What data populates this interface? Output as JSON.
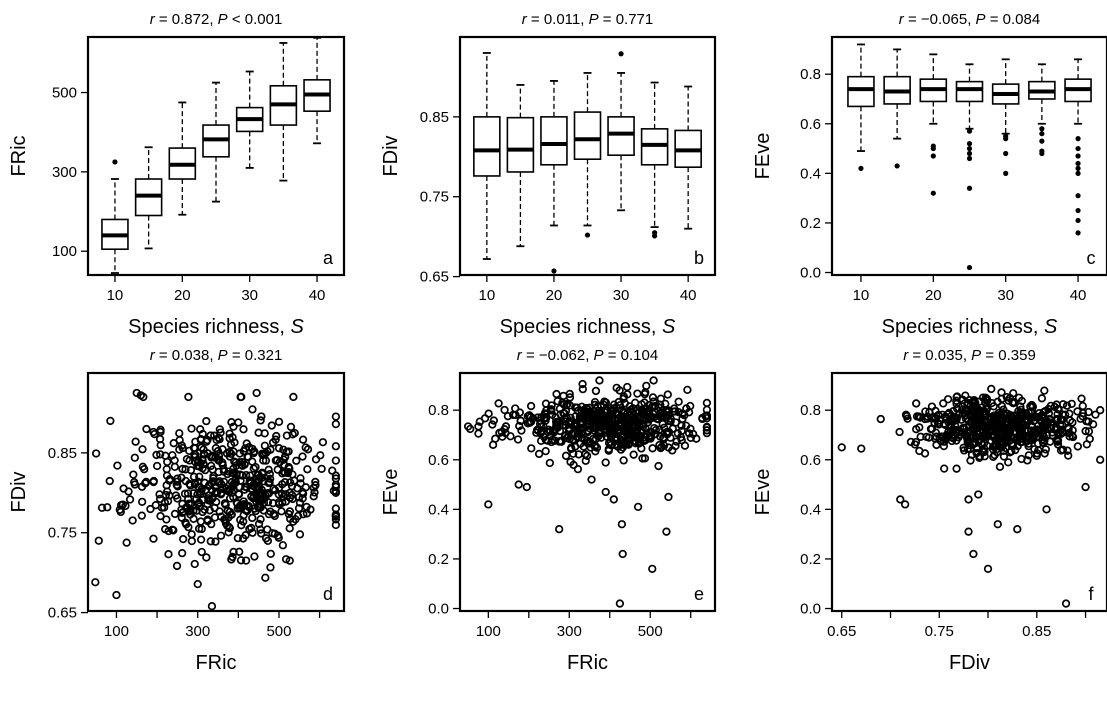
{
  "chart_data": [
    {
      "panel": "a",
      "type": "box",
      "title_parts": [
        "r",
        " = 0.872, ",
        "P",
        " < 0.001"
      ],
      "xlabel_parts": [
        "Species richness, ",
        "S"
      ],
      "ylabel": "FRic",
      "xlim": [
        6,
        44
      ],
      "ylim": [
        40,
        640
      ],
      "xticks": [
        10,
        20,
        30,
        40
      ],
      "xtick_labels": [
        "10",
        "20",
        "30",
        "40"
      ],
      "yticks": [
        100,
        300,
        500
      ],
      "ytick_labels": [
        "100",
        "300",
        "500"
      ],
      "boxes": [
        {
          "x": 10,
          "low": 45,
          "q1": 105,
          "median": 140,
          "q3": 180,
          "high": 282,
          "outliers": [
            325
          ]
        },
        {
          "x": 15,
          "low": 107,
          "q1": 190,
          "median": 240,
          "q3": 282,
          "high": 362,
          "outliers": []
        },
        {
          "x": 20,
          "low": 192,
          "q1": 282,
          "median": 318,
          "q3": 360,
          "high": 475,
          "outliers": []
        },
        {
          "x": 25,
          "low": 225,
          "q1": 338,
          "median": 382,
          "q3": 418,
          "high": 525,
          "outliers": []
        },
        {
          "x": 30,
          "low": 310,
          "q1": 402,
          "median": 433,
          "q3": 462,
          "high": 553,
          "outliers": []
        },
        {
          "x": 35,
          "low": 278,
          "q1": 418,
          "median": 470,
          "q3": 517,
          "high": 625,
          "outliers": []
        },
        {
          "x": 40,
          "low": 372,
          "q1": 453,
          "median": 495,
          "q3": 532,
          "high": 638,
          "outliers": []
        }
      ]
    },
    {
      "panel": "b",
      "type": "box",
      "title_parts": [
        "r",
        " = 0.011, ",
        "P",
        " = 0.771"
      ],
      "xlabel_parts": [
        "Species richness, ",
        "S"
      ],
      "ylabel": "FDiv",
      "xlim": [
        6,
        44
      ],
      "ylim": [
        0.652,
        0.95
      ],
      "xticks": [
        10,
        20,
        30,
        40
      ],
      "xtick_labels": [
        "10",
        "20",
        "30",
        "40"
      ],
      "yticks": [
        0.65,
        0.75,
        0.85
      ],
      "ytick_labels": [
        "0.65",
        "0.75",
        "0.85"
      ],
      "boxes": [
        {
          "x": 10,
          "low": 0.672,
          "q1": 0.776,
          "median": 0.808,
          "q3": 0.85,
          "high": 0.93,
          "outliers": []
        },
        {
          "x": 15,
          "low": 0.688,
          "q1": 0.781,
          "median": 0.809,
          "q3": 0.849,
          "high": 0.89,
          "outliers": []
        },
        {
          "x": 20,
          "low": 0.714,
          "q1": 0.79,
          "median": 0.816,
          "q3": 0.85,
          "high": 0.895,
          "outliers": [
            0.657
          ]
        },
        {
          "x": 25,
          "low": 0.714,
          "q1": 0.797,
          "median": 0.822,
          "q3": 0.856,
          "high": 0.905,
          "outliers": [
            0.702
          ]
        },
        {
          "x": 30,
          "low": 0.733,
          "q1": 0.802,
          "median": 0.829,
          "q3": 0.85,
          "high": 0.905,
          "outliers": [
            0.929
          ]
        },
        {
          "x": 35,
          "low": 0.712,
          "q1": 0.79,
          "median": 0.815,
          "q3": 0.835,
          "high": 0.893,
          "outliers": [
            0.705,
            0.701
          ]
        },
        {
          "x": 40,
          "low": 0.71,
          "q1": 0.787,
          "median": 0.808,
          "q3": 0.833,
          "high": 0.888,
          "outliers": []
        }
      ]
    },
    {
      "panel": "c",
      "type": "box",
      "title_parts": [
        "r",
        " = −0.065, ",
        "P",
        " = 0.084"
      ],
      "xlabel_parts": [
        "Species richness, ",
        "S"
      ],
      "ylabel": "FEve",
      "xlim": [
        6,
        44
      ],
      "ylim": [
        -0.01,
        0.95
      ],
      "xticks": [
        10,
        20,
        30,
        40
      ],
      "xtick_labels": [
        "10",
        "20",
        "30",
        "40"
      ],
      "yticks": [
        0.0,
        0.2,
        0.4,
        0.6,
        0.8
      ],
      "ytick_labels": [
        "0.0",
        "0.2",
        "0.4",
        "0.6",
        "0.8"
      ],
      "boxes": [
        {
          "x": 10,
          "low": 0.49,
          "q1": 0.67,
          "median": 0.74,
          "q3": 0.79,
          "high": 0.92,
          "outliers": [
            0.42
          ]
        },
        {
          "x": 15,
          "low": 0.54,
          "q1": 0.68,
          "median": 0.73,
          "q3": 0.79,
          "high": 0.9,
          "outliers": [
            0.43
          ]
        },
        {
          "x": 20,
          "low": 0.6,
          "q1": 0.69,
          "median": 0.74,
          "q3": 0.78,
          "high": 0.88,
          "outliers": [
            0.51,
            0.5,
            0.47,
            0.32
          ]
        },
        {
          "x": 25,
          "low": 0.58,
          "q1": 0.69,
          "median": 0.74,
          "q3": 0.77,
          "high": 0.84,
          "outliers": [
            0.57,
            0.52,
            0.5,
            0.48,
            0.46,
            0.34,
            0.02
          ]
        },
        {
          "x": 30,
          "low": 0.56,
          "q1": 0.68,
          "median": 0.72,
          "q3": 0.76,
          "high": 0.86,
          "outliers": [
            0.55,
            0.54,
            0.48,
            0.4
          ]
        },
        {
          "x": 35,
          "low": 0.6,
          "q1": 0.7,
          "median": 0.73,
          "q3": 0.77,
          "high": 0.84,
          "outliers": [
            0.58,
            0.56,
            0.53,
            0.49,
            0.48
          ]
        },
        {
          "x": 40,
          "low": 0.6,
          "q1": 0.69,
          "median": 0.74,
          "q3": 0.78,
          "high": 0.86,
          "outliers": [
            0.54,
            0.5,
            0.47,
            0.44,
            0.42,
            0.4,
            0.31,
            0.25,
            0.21,
            0.16
          ]
        }
      ]
    },
    {
      "panel": "d",
      "type": "scatter",
      "title_parts": [
        "r",
        " = 0.038, ",
        "P",
        " = 0.321"
      ],
      "xlabel_parts": [
        "FRic"
      ],
      "ylabel": "FDiv",
      "xlim": [
        30,
        660
      ],
      "ylim": [
        0.652,
        0.95
      ],
      "xticks": [
        100,
        200,
        300,
        400,
        500,
        600
      ],
      "xtick_labels": [
        "100",
        "",
        "300",
        "",
        "500",
        ""
      ],
      "yticks": [
        0.65,
        0.75,
        0.85
      ],
      "ytick_labels": [
        "0.65",
        "0.75",
        "0.85"
      ],
      "cloud": {
        "n": 560,
        "x_mean": 380,
        "x_sd": 120,
        "x_min": 50,
        "x_max": 640,
        "y_mean": 0.812,
        "y_sd": 0.042,
        "y_min": 0.68,
        "y_max": 0.92,
        "seed": 11
      },
      "highlights": [
        [
          48,
          0.688
        ],
        [
          100,
          0.672
        ],
        [
          335,
          0.658
        ],
        [
          150,
          0.925
        ],
        [
          160,
          0.922
        ],
        [
          445,
          0.925
        ],
        [
          605,
          0.83
        ],
        [
          640,
          0.8
        ],
        [
          85,
          0.89
        ]
      ]
    },
    {
      "panel": "e",
      "type": "scatter",
      "title_parts": [
        "r",
        " = −0.062, ",
        "P",
        " = 0.104"
      ],
      "xlabel_parts": [
        "FRic"
      ],
      "ylabel": "FEve",
      "xlim": [
        30,
        660
      ],
      "ylim": [
        -0.01,
        0.95
      ],
      "xticks": [
        100,
        200,
        300,
        400,
        500,
        600
      ],
      "xtick_labels": [
        "100",
        "",
        "300",
        "",
        "500",
        ""
      ],
      "yticks": [
        0.0,
        0.2,
        0.4,
        0.6,
        0.8
      ],
      "ytick_labels": [
        "0.0",
        "0.2",
        "0.4",
        "0.6",
        "0.8"
      ],
      "cloud": {
        "n": 560,
        "x_mean": 380,
        "x_sd": 120,
        "x_min": 50,
        "x_max": 640,
        "y_mean": 0.74,
        "y_sd": 0.06,
        "y_min": 0.5,
        "y_max": 0.92,
        "seed": 23
      },
      "highlights": [
        [
          100,
          0.42
        ],
        [
          275,
          0.32
        ],
        [
          355,
          0.52
        ],
        [
          390,
          0.47
        ],
        [
          430,
          0.34
        ],
        [
          432,
          0.22
        ],
        [
          425,
          0.02
        ],
        [
          470,
          0.41
        ],
        [
          505,
          0.16
        ],
        [
          540,
          0.31
        ],
        [
          545,
          0.45
        ],
        [
          410,
          0.44
        ],
        [
          175,
          0.5
        ],
        [
          195,
          0.49
        ]
      ]
    },
    {
      "panel": "f",
      "type": "scatter",
      "title_parts": [
        "r",
        " = 0.035, ",
        "P",
        " = 0.359"
      ],
      "xlabel_parts": [
        "FDiv"
      ],
      "ylabel": "FEve",
      "xlim": [
        0.64,
        0.922
      ],
      "ylim": [
        -0.01,
        0.95
      ],
      "xticks": [
        0.65,
        0.7,
        0.75,
        0.8,
        0.85,
        0.9
      ],
      "xtick_labels": [
        "0.65",
        "",
        "0.75",
        "",
        "0.85",
        ""
      ],
      "yticks": [
        0.0,
        0.2,
        0.4,
        0.6,
        0.8
      ],
      "ytick_labels": [
        "0.0",
        "0.2",
        "0.4",
        "0.6",
        "0.8"
      ],
      "cloud": {
        "n": 560,
        "x_mean": 0.812,
        "x_sd": 0.04,
        "x_min": 0.69,
        "x_max": 0.915,
        "y_mean": 0.74,
        "y_sd": 0.06,
        "y_min": 0.5,
        "y_max": 0.92,
        "seed": 37
      },
      "highlights": [
        [
          0.65,
          0.65
        ],
        [
          0.67,
          0.645
        ],
        [
          0.79,
          0.46
        ],
        [
          0.78,
          0.44
        ],
        [
          0.78,
          0.31
        ],
        [
          0.785,
          0.22
        ],
        [
          0.8,
          0.16
        ],
        [
          0.81,
          0.34
        ],
        [
          0.83,
          0.32
        ],
        [
          0.86,
          0.4
        ],
        [
          0.88,
          0.02
        ],
        [
          0.9,
          0.49
        ],
        [
          0.915,
          0.8
        ],
        [
          0.915,
          0.6
        ],
        [
          0.71,
          0.44
        ],
        [
          0.715,
          0.42
        ]
      ]
    }
  ]
}
